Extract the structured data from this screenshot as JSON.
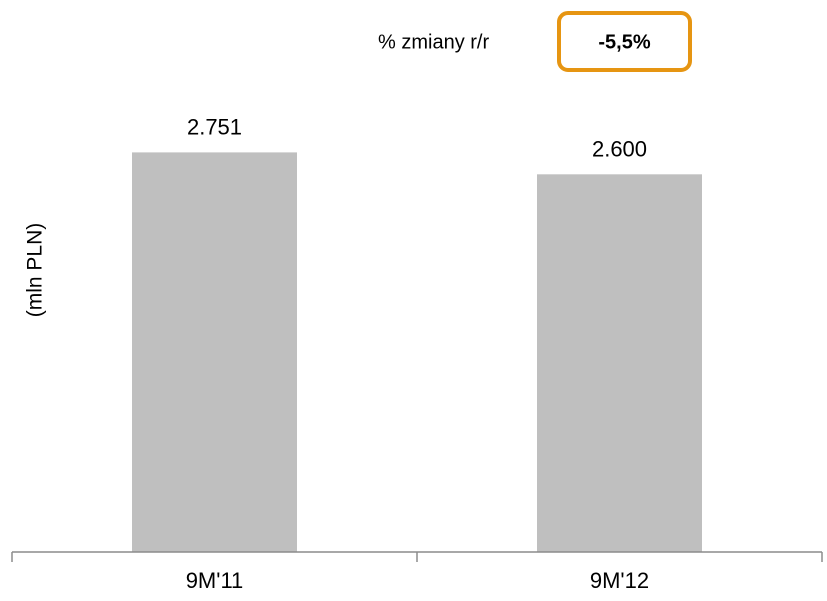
{
  "chart_data": {
    "type": "bar",
    "title": "",
    "xlabel": "",
    "ylabel": "(mln PLN)",
    "categories": [
      "9M'11",
      "9M'12"
    ],
    "values": [
      2751,
      2600
    ],
    "value_labels": [
      "2.751",
      "2.600"
    ],
    "ylim": [
      0,
      3800
    ],
    "grid": false,
    "bar_color": "#bfbfbf"
  },
  "change": {
    "label": "% zmiany r/r",
    "value": "-5,5%",
    "border_color": "#e69512"
  },
  "colors": {
    "axis": "#8c8c8c"
  }
}
